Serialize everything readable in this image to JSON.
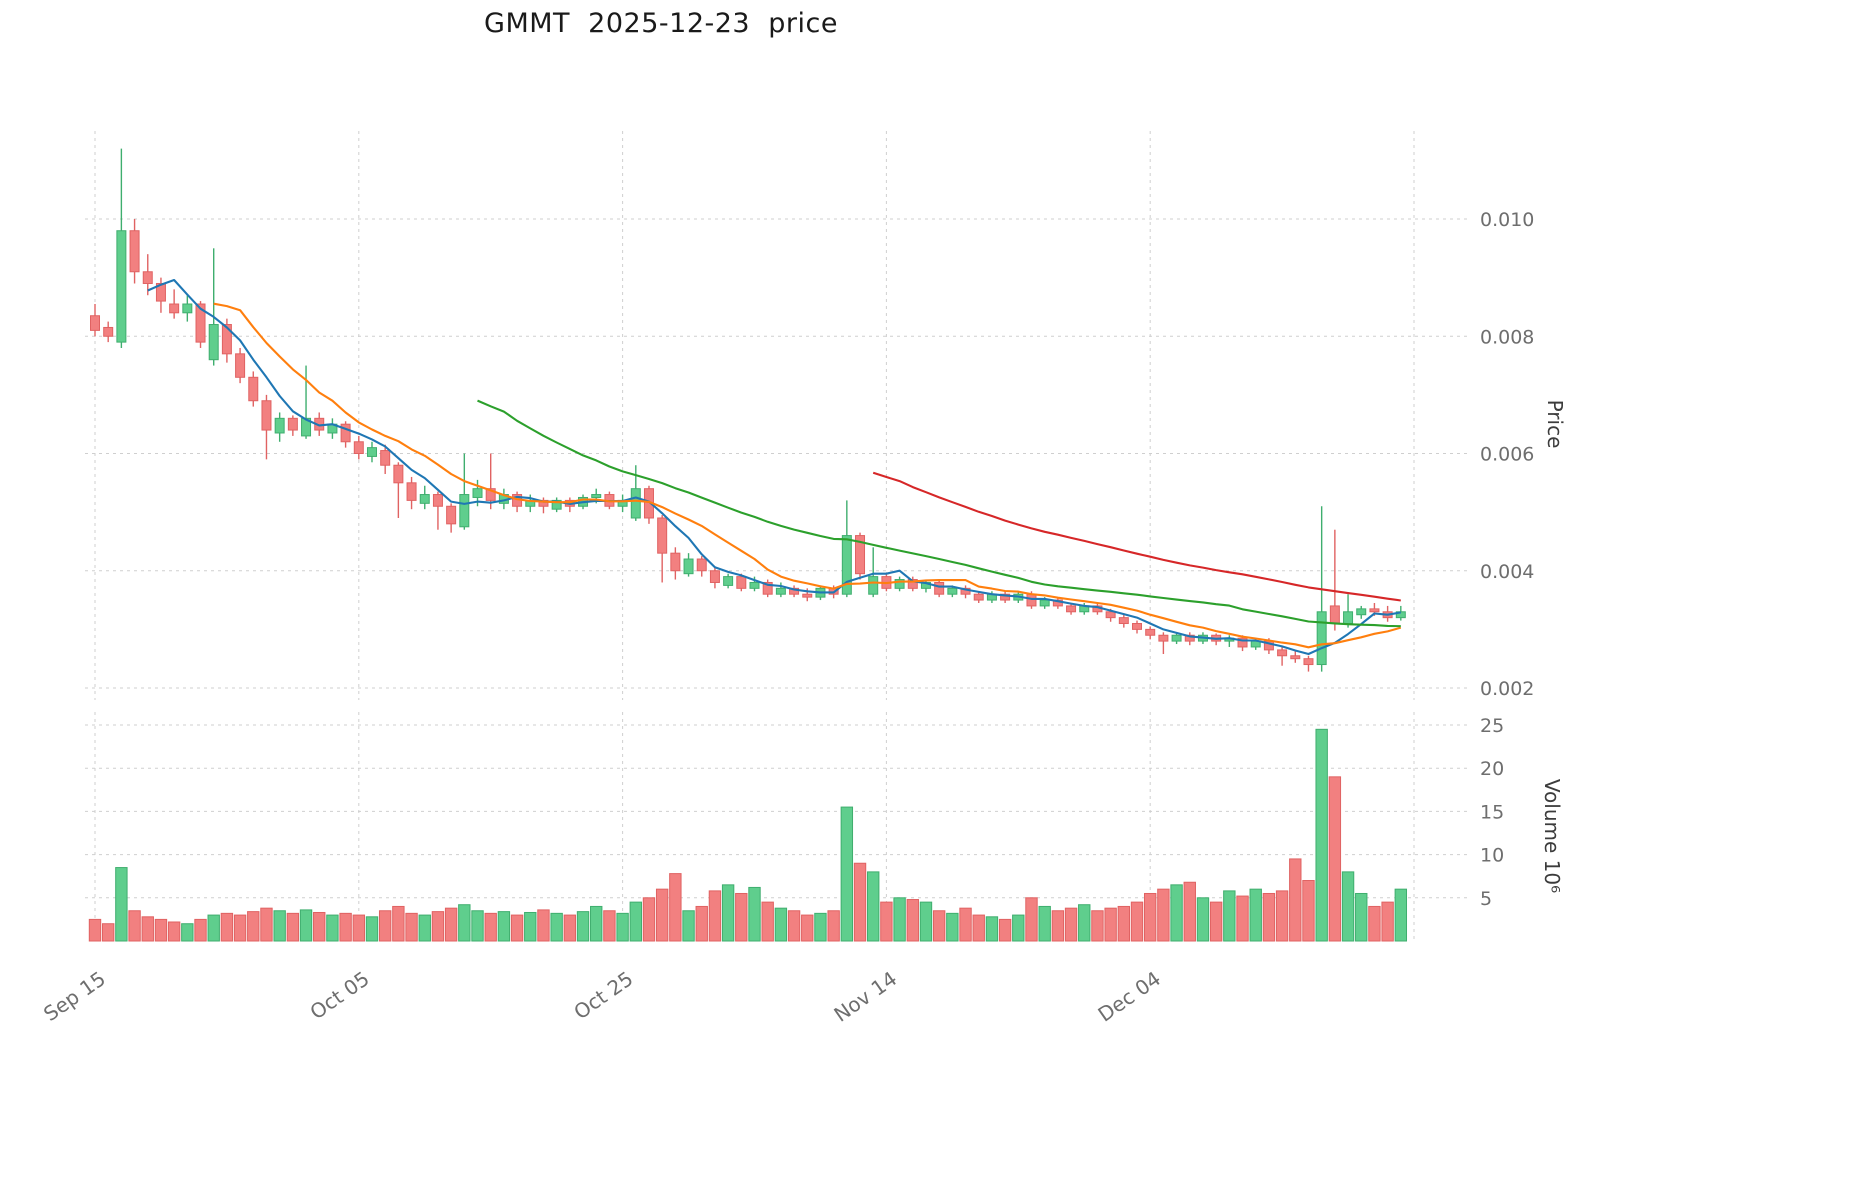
{
  "title": "GMMT  2025-12-23  price",
  "axes": {
    "price_axis_label": "Price",
    "volume_axis_label": "Volume  10⁶",
    "price_ticks": [
      "0.002",
      "0.004",
      "0.006",
      "0.008",
      "0.010"
    ],
    "volume_ticks": [
      "5",
      "10",
      "15",
      "20",
      "25"
    ],
    "x_ticks": [
      {
        "label": "Sep 15",
        "index": 0
      },
      {
        "label": "Oct 05",
        "index": 20
      },
      {
        "label": "Oct 25",
        "index": 40
      },
      {
        "label": "Nov 14",
        "index": 60
      },
      {
        "label": "Dec 04",
        "index": 80
      }
    ],
    "extra_gridline_index": 100
  },
  "chart_data": {
    "type": "candlestick",
    "title": "GMMT  2025-12-23  price",
    "price_axis_range": [
      0.0018,
      0.0115
    ],
    "volume_axis_range": [
      0,
      26
    ],
    "grid": true,
    "legend": false,
    "up_color": "#5fce8d",
    "up_edge_color": "#3fae6e",
    "down_color": "#f28080",
    "down_edge_color": "#e06262",
    "moving_averages": [
      {
        "name": "MA5",
        "window": 5,
        "color": "#1f77b4"
      },
      {
        "name": "MA10",
        "window": 10,
        "color": "#ff7f0e"
      },
      {
        "name": "MA30",
        "window": 30,
        "color": "#2ca02c"
      },
      {
        "name": "MA60",
        "window": 60,
        "color": "#d62728"
      }
    ],
    "dates": [
      "2025-09-15",
      "2025-09-16",
      "2025-09-17",
      "2025-09-18",
      "2025-09-19",
      "2025-09-20",
      "2025-09-21",
      "2025-09-22",
      "2025-09-23",
      "2025-09-24",
      "2025-09-25",
      "2025-09-26",
      "2025-09-27",
      "2025-09-28",
      "2025-09-29",
      "2025-09-30",
      "2025-10-01",
      "2025-10-02",
      "2025-10-03",
      "2025-10-04",
      "2025-10-05",
      "2025-10-06",
      "2025-10-07",
      "2025-10-08",
      "2025-10-09",
      "2025-10-10",
      "2025-10-11",
      "2025-10-12",
      "2025-10-13",
      "2025-10-14",
      "2025-10-15",
      "2025-10-16",
      "2025-10-17",
      "2025-10-18",
      "2025-10-19",
      "2025-10-20",
      "2025-10-21",
      "2025-10-22",
      "2025-10-23",
      "2025-10-24",
      "2025-10-25",
      "2025-10-26",
      "2025-10-27",
      "2025-10-28",
      "2025-10-29",
      "2025-10-30",
      "2025-10-31",
      "2025-11-01",
      "2025-11-02",
      "2025-11-03",
      "2025-11-04",
      "2025-11-05",
      "2025-11-06",
      "2025-11-07",
      "2025-11-08",
      "2025-11-09",
      "2025-11-10",
      "2025-11-11",
      "2025-11-12",
      "2025-11-13",
      "2025-11-14",
      "2025-11-15",
      "2025-11-16",
      "2025-11-17",
      "2025-11-18",
      "2025-11-19",
      "2025-11-20",
      "2025-11-21",
      "2025-11-22",
      "2025-11-23",
      "2025-11-24",
      "2025-11-25",
      "2025-11-26",
      "2025-11-27",
      "2025-11-28",
      "2025-11-29",
      "2025-11-30",
      "2025-12-01",
      "2025-12-02",
      "2025-12-03",
      "2025-12-04",
      "2025-12-05",
      "2025-12-06",
      "2025-12-07",
      "2025-12-08",
      "2025-12-09",
      "2025-12-10",
      "2025-12-11",
      "2025-12-12",
      "2025-12-13",
      "2025-12-14",
      "2025-12-15",
      "2025-12-16",
      "2025-12-17",
      "2025-12-18",
      "2025-12-19",
      "2025-12-20",
      "2025-12-21",
      "2025-12-22",
      "2025-12-23"
    ],
    "ohlc": [
      [
        0.00835,
        0.00855,
        0.008,
        0.0081
      ],
      [
        0.00815,
        0.00825,
        0.0079,
        0.008
      ],
      [
        0.0079,
        0.0112,
        0.0078,
        0.0098
      ],
      [
        0.0098,
        0.01,
        0.0089,
        0.0091
      ],
      [
        0.0091,
        0.0094,
        0.0087,
        0.0089
      ],
      [
        0.0089,
        0.009,
        0.0084,
        0.0086
      ],
      [
        0.00855,
        0.0088,
        0.0083,
        0.0084
      ],
      [
        0.0084,
        0.0087,
        0.00825,
        0.00855
      ],
      [
        0.00855,
        0.0086,
        0.0078,
        0.0079
      ],
      [
        0.0076,
        0.0095,
        0.0075,
        0.0082
      ],
      [
        0.0082,
        0.0083,
        0.00755,
        0.0077
      ],
      [
        0.0077,
        0.0078,
        0.0072,
        0.0073
      ],
      [
        0.0073,
        0.0074,
        0.0068,
        0.0069
      ],
      [
        0.0069,
        0.007,
        0.0059,
        0.0064
      ],
      [
        0.00635,
        0.0067,
        0.0062,
        0.0066
      ],
      [
        0.0066,
        0.00665,
        0.0063,
        0.0064
      ],
      [
        0.0063,
        0.0075,
        0.00625,
        0.0066
      ],
      [
        0.0066,
        0.0067,
        0.0063,
        0.0064
      ],
      [
        0.00635,
        0.0066,
        0.00625,
        0.0065
      ],
      [
        0.0065,
        0.00655,
        0.0061,
        0.0062
      ],
      [
        0.0062,
        0.0063,
        0.0059,
        0.006
      ],
      [
        0.00595,
        0.0062,
        0.00585,
        0.0061
      ],
      [
        0.00605,
        0.00615,
        0.00565,
        0.0058
      ],
      [
        0.0058,
        0.00585,
        0.0049,
        0.0055
      ],
      [
        0.0055,
        0.0056,
        0.00505,
        0.0052
      ],
      [
        0.00515,
        0.00545,
        0.00505,
        0.0053
      ],
      [
        0.0053,
        0.00535,
        0.0047,
        0.0051
      ],
      [
        0.0051,
        0.00515,
        0.00465,
        0.0048
      ],
      [
        0.00475,
        0.006,
        0.0047,
        0.0053
      ],
      [
        0.00525,
        0.00555,
        0.0051,
        0.0054
      ],
      [
        0.0054,
        0.006,
        0.00505,
        0.0052
      ],
      [
        0.00515,
        0.0054,
        0.00505,
        0.0053
      ],
      [
        0.0053,
        0.00535,
        0.005,
        0.0051
      ],
      [
        0.0051,
        0.0053,
        0.005,
        0.0052
      ],
      [
        0.0052,
        0.00525,
        0.00498,
        0.0051
      ],
      [
        0.00505,
        0.00525,
        0.005,
        0.0052
      ],
      [
        0.0052,
        0.00525,
        0.005,
        0.0051
      ],
      [
        0.0051,
        0.0053,
        0.00505,
        0.00525
      ],
      [
        0.00525,
        0.0054,
        0.00515,
        0.0053
      ],
      [
        0.0053,
        0.00535,
        0.00505,
        0.0051
      ],
      [
        0.0051,
        0.0053,
        0.005,
        0.0052
      ],
      [
        0.0049,
        0.0058,
        0.00485,
        0.0054
      ],
      [
        0.0054,
        0.00545,
        0.0048,
        0.0049
      ],
      [
        0.0049,
        0.00495,
        0.0038,
        0.0043
      ],
      [
        0.0043,
        0.0044,
        0.00385,
        0.004
      ],
      [
        0.00395,
        0.0043,
        0.0039,
        0.0042
      ],
      [
        0.0042,
        0.00425,
        0.0039,
        0.004
      ],
      [
        0.004,
        0.00405,
        0.0037,
        0.0038
      ],
      [
        0.00375,
        0.00395,
        0.0037,
        0.0039
      ],
      [
        0.0039,
        0.00395,
        0.00365,
        0.0037
      ],
      [
        0.0037,
        0.0039,
        0.00365,
        0.0038
      ],
      [
        0.0038,
        0.00385,
        0.00355,
        0.0036
      ],
      [
        0.0036,
        0.0038,
        0.00355,
        0.0037
      ],
      [
        0.0037,
        0.00375,
        0.00355,
        0.0036
      ],
      [
        0.0036,
        0.0037,
        0.00348,
        0.00355
      ],
      [
        0.00355,
        0.00375,
        0.0035,
        0.0037
      ],
      [
        0.0037,
        0.00375,
        0.00353,
        0.0036
      ],
      [
        0.0036,
        0.0052,
        0.00355,
        0.0046
      ],
      [
        0.0046,
        0.00465,
        0.00385,
        0.00395
      ],
      [
        0.0036,
        0.0044,
        0.00355,
        0.0039
      ],
      [
        0.0039,
        0.00395,
        0.00365,
        0.0037
      ],
      [
        0.0037,
        0.0039,
        0.00365,
        0.00385
      ],
      [
        0.00385,
        0.0039,
        0.00365,
        0.0037
      ],
      [
        0.0037,
        0.00385,
        0.00363,
        0.0038
      ],
      [
        0.0038,
        0.00385,
        0.00355,
        0.0036
      ],
      [
        0.0036,
        0.00375,
        0.00355,
        0.0037
      ],
      [
        0.0037,
        0.00375,
        0.00353,
        0.0036
      ],
      [
        0.0036,
        0.00365,
        0.00345,
        0.0035
      ],
      [
        0.0035,
        0.00365,
        0.00345,
        0.0036
      ],
      [
        0.0036,
        0.00365,
        0.00345,
        0.0035
      ],
      [
        0.0035,
        0.00365,
        0.00345,
        0.0036
      ],
      [
        0.0036,
        0.00365,
        0.00335,
        0.0034
      ],
      [
        0.0034,
        0.00355,
        0.00335,
        0.0035
      ],
      [
        0.0035,
        0.00355,
        0.00335,
        0.0034
      ],
      [
        0.0034,
        0.00345,
        0.00325,
        0.0033
      ],
      [
        0.0033,
        0.00345,
        0.00325,
        0.0034
      ],
      [
        0.0034,
        0.00345,
        0.00325,
        0.0033
      ],
      [
        0.0033,
        0.00335,
        0.00313,
        0.0032
      ],
      [
        0.0032,
        0.00325,
        0.00303,
        0.0031
      ],
      [
        0.0031,
        0.00315,
        0.00293,
        0.003
      ],
      [
        0.003,
        0.00305,
        0.00283,
        0.0029
      ],
      [
        0.0029,
        0.00295,
        0.00258,
        0.0028
      ],
      [
        0.0028,
        0.00295,
        0.00275,
        0.0029
      ],
      [
        0.0029,
        0.00295,
        0.00273,
        0.0028
      ],
      [
        0.0028,
        0.00295,
        0.00275,
        0.0029
      ],
      [
        0.0029,
        0.00293,
        0.00273,
        0.0028
      ],
      [
        0.0028,
        0.0029,
        0.0027,
        0.00285
      ],
      [
        0.00285,
        0.0029,
        0.00263,
        0.0027
      ],
      [
        0.0027,
        0.00285,
        0.00265,
        0.0028
      ],
      [
        0.0028,
        0.00285,
        0.00258,
        0.00265
      ],
      [
        0.00265,
        0.0027,
        0.00238,
        0.00255
      ],
      [
        0.00255,
        0.00265,
        0.00243,
        0.0025
      ],
      [
        0.0025,
        0.00255,
        0.00228,
        0.0024
      ],
      [
        0.0024,
        0.0051,
        0.00228,
        0.0033
      ],
      [
        0.0034,
        0.0047,
        0.00298,
        0.0031
      ],
      [
        0.0031,
        0.0036,
        0.00303,
        0.0033
      ],
      [
        0.00325,
        0.0034,
        0.00318,
        0.00335
      ],
      [
        0.00335,
        0.00345,
        0.00323,
        0.0033
      ],
      [
        0.0033,
        0.0034,
        0.00313,
        0.0032
      ],
      [
        0.0032,
        0.0034,
        0.00315,
        0.0033
      ]
    ],
    "volume_millions": [
      2.5,
      2.0,
      8.5,
      3.5,
      2.8,
      2.5,
      2.2,
      2.0,
      2.5,
      3.0,
      3.2,
      3.0,
      3.4,
      3.8,
      3.5,
      3.2,
      3.6,
      3.3,
      3.0,
      3.2,
      3.0,
      2.8,
      3.5,
      4.0,
      3.2,
      3.0,
      3.4,
      3.8,
      4.2,
      3.5,
      3.2,
      3.4,
      3.0,
      3.3,
      3.6,
      3.2,
      3.0,
      3.4,
      4.0,
      3.5,
      3.2,
      4.5,
      5.0,
      6.0,
      7.8,
      3.5,
      4.0,
      5.8,
      6.5,
      5.5,
      6.2,
      4.5,
      3.8,
      3.5,
      3.0,
      3.2,
      3.5,
      15.5,
      9.0,
      8.0,
      4.5,
      5.0,
      4.8,
      4.5,
      3.5,
      3.2,
      3.8,
      3.0,
      2.8,
      2.5,
      3.0,
      5.0,
      4.0,
      3.5,
      3.8,
      4.2,
      3.5,
      3.8,
      4.0,
      4.5,
      5.5,
      6.0,
      6.5,
      6.8,
      5.0,
      4.5,
      5.8,
      5.2,
      6.0,
      5.5,
      5.8,
      9.5,
      7.0,
      24.5,
      19.0,
      8.0,
      5.5,
      4.0,
      4.5,
      6.0
    ]
  }
}
